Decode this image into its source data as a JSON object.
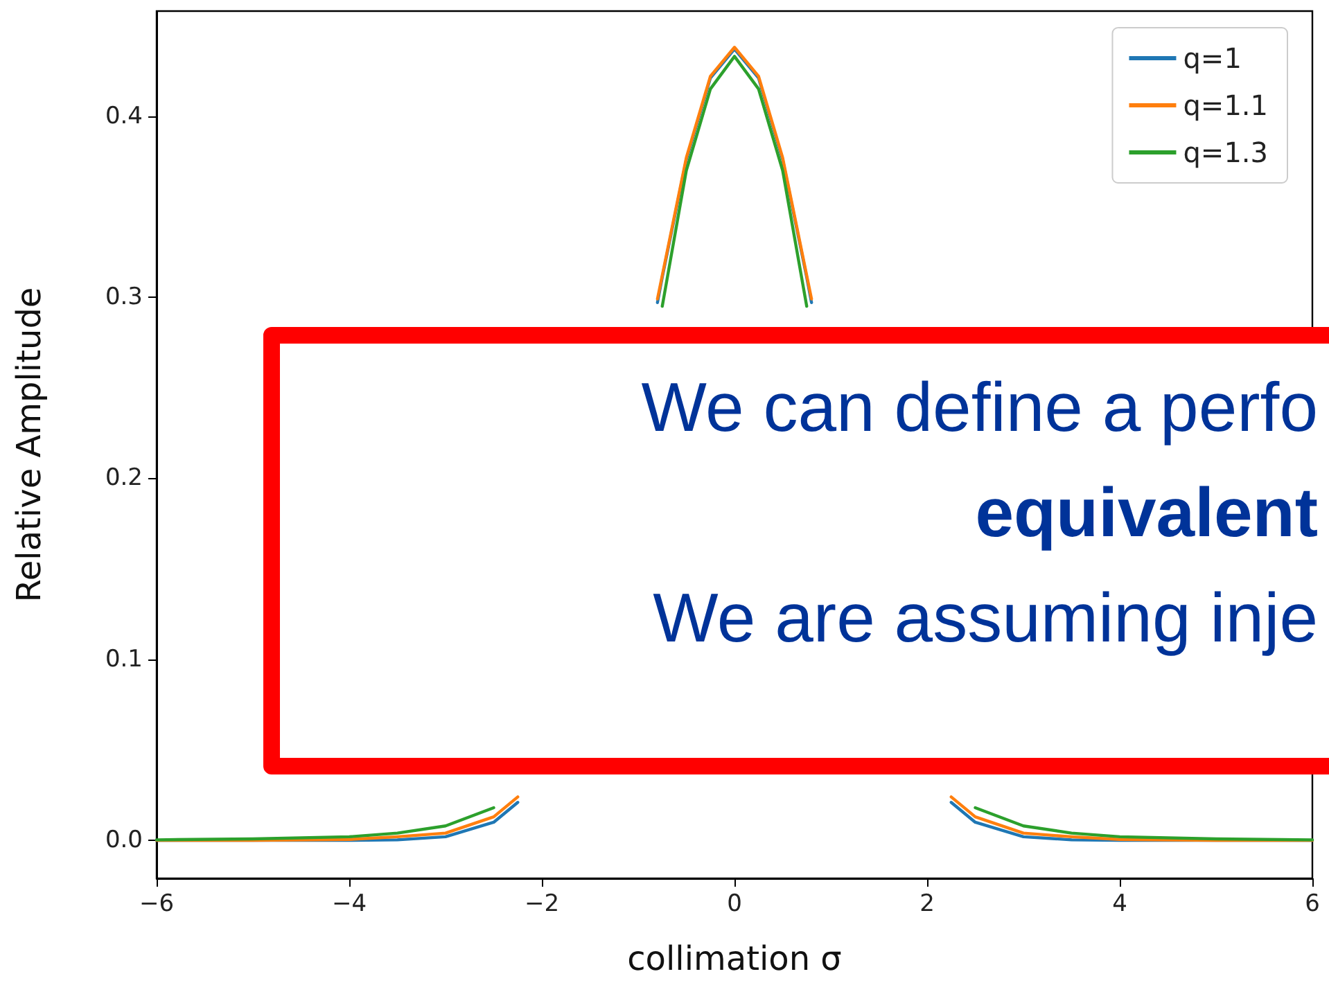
{
  "chart_data": {
    "type": "line",
    "xlabel": "collimation σ",
    "ylabel": "Relative Amplitude",
    "xlim": [
      -6,
      6
    ],
    "ylim": [
      -0.021,
      0.458
    ],
    "xticks": [
      {
        "value": -6,
        "label": "−6"
      },
      {
        "value": -4,
        "label": "−4"
      },
      {
        "value": -2,
        "label": "−2"
      },
      0,
      2,
      4,
      6
    ],
    "yticks": [
      {
        "value": 0,
        "label": "0.0"
      },
      0.1,
      0.2,
      0.3,
      0.4
    ],
    "grid": false,
    "legend": "top right",
    "marker": "none",
    "line_style": "solid",
    "annotations": [
      "We can define a perfo",
      "equivalent",
      "We are assuming inje"
    ],
    "series": [
      {
        "name": "q=1",
        "color": "#1f77b4",
        "x": [
          -6,
          -5,
          -4,
          -3.5,
          -3,
          -2.5,
          -2.25,
          -1.5,
          -0.8,
          -0.75,
          -0.5,
          -0.25,
          0,
          0.25,
          0.5,
          0.75,
          0.8,
          1.5,
          2.25,
          2.5,
          3,
          3.5,
          4,
          5,
          6
        ],
        "values": [
          0,
          0,
          0,
          0.0003,
          0.002,
          0.01,
          0.021,
          null,
          0.297,
          0.311,
          0.376,
          0.421,
          0.437,
          0.421,
          0.376,
          0.311,
          0.297,
          null,
          0.021,
          0.01,
          0.002,
          0.0003,
          0,
          0,
          0
        ]
      },
      {
        "name": "q=1.1",
        "color": "#ff7f0e",
        "x": [
          -6,
          -5,
          -4,
          -3.5,
          -3,
          -2.5,
          -2.25,
          -1.5,
          -0.8,
          -0.75,
          -0.5,
          -0.25,
          0,
          0.25,
          0.5,
          0.75,
          0.8,
          1.5,
          2.25,
          2.5,
          3,
          3.5,
          4,
          5,
          6
        ],
        "values": [
          0,
          0,
          0.0005,
          0.002,
          0.004,
          0.013,
          0.024,
          null,
          0.299,
          0.312,
          0.377,
          0.422,
          0.438,
          0.422,
          0.377,
          0.312,
          0.299,
          null,
          0.024,
          0.013,
          0.004,
          0.002,
          0.0005,
          0,
          0
        ]
      },
      {
        "name": "q=1.3",
        "color": "#2ca02c",
        "x": [
          -6,
          -5,
          -4,
          -3.5,
          -3,
          -2.5,
          -1.5,
          -0.75,
          -0.5,
          -0.25,
          0,
          0.25,
          0.5,
          0.75,
          1.5,
          2.5,
          3,
          3.5,
          4,
          5,
          6
        ],
        "values": [
          0.0003,
          0.0008,
          0.002,
          0.004,
          0.008,
          0.018,
          null,
          0.295,
          0.37,
          0.415,
          0.433,
          0.415,
          0.37,
          0.295,
          null,
          0.018,
          0.008,
          0.004,
          0.002,
          0.0008,
          0.0003
        ]
      }
    ]
  }
}
